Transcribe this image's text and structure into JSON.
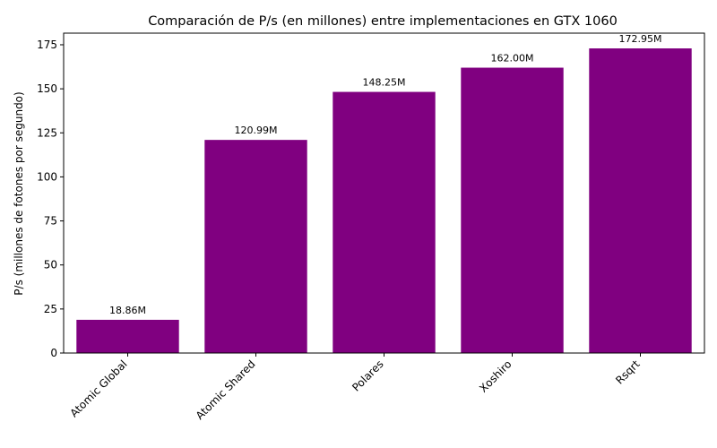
{
  "chart_data": {
    "type": "bar",
    "title": "Comparación de P/s (en millones) entre implementaciones en GTX 1060",
    "xlabel": "",
    "ylabel": "P/s (millones de fotones por segundo)",
    "categories": [
      "Atomic Global",
      "Atomic Shared",
      "Polares",
      "Xoshiro",
      "Rsqrt"
    ],
    "values": [
      18.86,
      120.99,
      148.25,
      162.0,
      172.95
    ],
    "data_labels": [
      "18.86M",
      "120.99M",
      "148.25M",
      "162.00M",
      "172.95M"
    ],
    "ylim": [
      0,
      181.6
    ],
    "yticks": [
      0,
      25,
      50,
      75,
      100,
      125,
      150,
      175
    ],
    "ytick_labels": [
      "0",
      "25",
      "50",
      "75",
      "100",
      "125",
      "150",
      "175"
    ],
    "bar_color": "#800080",
    "grid": false,
    "legend": "none"
  }
}
